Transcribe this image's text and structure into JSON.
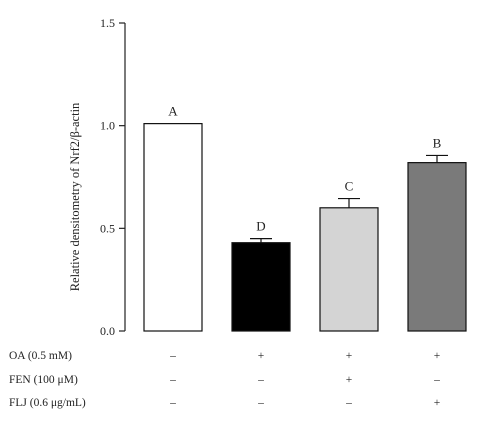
{
  "chart_data": {
    "type": "bar",
    "title": "",
    "xlabel": "",
    "ylabel": "Relative densitometry of Nrf2/β-actin",
    "ylim": [
      0,
      1.5
    ],
    "yticks": [
      "0.0",
      "0.5",
      "1.0",
      "1.5"
    ],
    "grid": false,
    "groups": [
      "1",
      "2",
      "3",
      "4"
    ],
    "values": [
      1.01,
      0.43,
      0.6,
      0.82
    ],
    "errors": [
      0.0,
      0.02,
      0.045,
      0.035
    ],
    "bar_colors": [
      "#ffffff",
      "#000000",
      "#d4d4d4",
      "#7a7a7a"
    ],
    "significance_labels": [
      "A",
      "D",
      "C",
      "B"
    ],
    "conditions": [
      {
        "label": "OA (0.5 mM)",
        "values": [
          "–",
          "+",
          "+",
          "+"
        ]
      },
      {
        "label": "FEN (100 μM)",
        "values": [
          "–",
          "–",
          "+",
          "–"
        ]
      },
      {
        "label": "FLJ (0.6 μg/mL)",
        "values": [
          "–",
          "–",
          "–",
          "+"
        ]
      }
    ]
  }
}
